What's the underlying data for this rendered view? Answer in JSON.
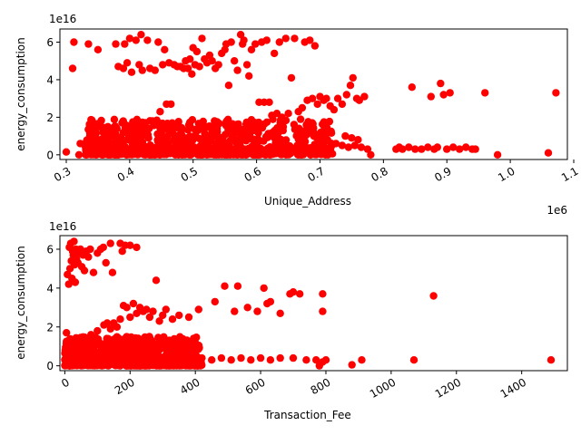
{
  "figure": {
    "background": "#ffffff",
    "marker_color": "#ff0000"
  },
  "chart_data": [
    {
      "type": "scatter",
      "xlabel": "Unique_Address",
      "ylabel": "energy_consumption",
      "x_offset_text": "1e6",
      "y_offset_text": "1e16",
      "xlim": [
        290000,
        1090000
      ],
      "ylim": [
        -2500000000000000.0,
        6.7e+16
      ],
      "xticks": [
        300000,
        400000,
        500000,
        600000,
        700000,
        800000,
        900000,
        1000000,
        1100000
      ],
      "xtick_labels": [
        "0.3",
        "0.4",
        "0.5",
        "0.6",
        "0.7",
        "0.8",
        "0.9",
        "1.0",
        "1.1"
      ],
      "yticks": [
        0,
        2e+16,
        4e+16,
        6e+16
      ],
      "ytick_labels": [
        "0",
        "2",
        "4",
        "6"
      ],
      "series": [
        {
          "color": "#ff0000",
          "points": [
            [
              300000,
              1500000000000000.0
            ],
            [
              310000,
              4.6e+16
            ],
            [
              312000,
              6e+16
            ],
            [
              320000,
              0
            ],
            [
              322000,
              6000000000000000.0
            ],
            [
              330000,
              6000000000000000.0
            ],
            [
              335000,
              5.9e+16
            ],
            [
              345000,
              6000000000000000.0
            ],
            [
              350000,
              5.6e+16
            ],
            [
              355000,
              1500000000000000.0
            ],
            [
              360000,
              6000000000000000.0
            ],
            [
              365000,
              7000000000000000.0
            ],
            [
              372000,
              1200000000000000.0
            ],
            [
              378000,
              5.9e+16
            ],
            [
              382000,
              4.7e+16
            ],
            [
              388000,
              1.7e+16
            ],
            [
              390000,
              4.6e+16
            ],
            [
              392000,
              5.9e+16
            ],
            [
              396000,
              4.9e+16
            ],
            [
              400000,
              6.2e+16
            ],
            [
              403000,
              4.4e+16
            ],
            [
              405000,
              1.5e+16
            ],
            [
              410000,
              6.1e+16
            ],
            [
              415000,
              4.8e+16
            ],
            [
              418000,
              6.4e+16
            ],
            [
              420000,
              4.5e+16
            ],
            [
              422000,
              1.5e+16
            ],
            [
              425000,
              1.3e+16
            ],
            [
              428000,
              6.1e+16
            ],
            [
              432000,
              4.6e+16
            ],
            [
              436000,
              1.8e+16
            ],
            [
              440000,
              4.5e+16
            ],
            [
              445000,
              6e+16
            ],
            [
              448000,
              2.3e+16
            ],
            [
              452000,
              4.8e+16
            ],
            [
              455000,
              5.6e+16
            ],
            [
              458000,
              2.7e+16
            ],
            [
              462000,
              4.9e+16
            ],
            [
              465000,
              2.7e+16
            ],
            [
              470000,
              4.8e+16
            ],
            [
              475000,
              4.7e+16
            ],
            [
              480000,
              4.7e+16
            ],
            [
              485000,
              4.6e+16
            ],
            [
              488000,
              5e+16
            ],
            [
              492000,
              4.6e+16
            ],
            [
              495000,
              5.1e+16
            ],
            [
              498000,
              4.3e+16
            ],
            [
              500000,
              5.7e+16
            ],
            [
              503000,
              4.8e+16
            ],
            [
              506000,
              5.5e+16
            ],
            [
              510000,
              4.7e+16
            ],
            [
              514000,
              6.2e+16
            ],
            [
              518000,
              5.1e+16
            ],
            [
              522000,
              4.9e+16
            ],
            [
              526000,
              5.3e+16
            ],
            [
              530000,
              5e+16
            ],
            [
              535000,
              4.6e+16
            ],
            [
              540000,
              4.8e+16
            ],
            [
              545000,
              5.4e+16
            ],
            [
              550000,
              5.6e+16
            ],
            [
              552000,
              5.9e+16
            ],
            [
              556000,
              3.7e+16
            ],
            [
              560000,
              6e+16
            ],
            [
              565000,
              5e+16
            ],
            [
              570000,
              4.5e+16
            ],
            [
              575000,
              6.4e+16
            ],
            [
              578000,
              5.9e+16
            ],
            [
              580000,
              6.1e+16
            ],
            [
              585000,
              4.8e+16
            ],
            [
              588000,
              4.2e+16
            ],
            [
              592000,
              5.6e+16
            ],
            [
              598000,
              5.9e+16
            ],
            [
              604000,
              2.8e+16
            ],
            [
              608000,
              6e+16
            ],
            [
              612000,
              2.8e+16
            ],
            [
              616000,
              6.1e+16
            ],
            [
              620000,
              2.8e+16
            ],
            [
              624000,
              2.1e+16
            ],
            [
              628000,
              5.4e+16
            ],
            [
              632000,
              2.2e+16
            ],
            [
              636000,
              6e+16
            ],
            [
              640000,
              2e+16
            ],
            [
              646000,
              6.2e+16
            ],
            [
              650000,
              2.2e+16
            ],
            [
              655000,
              4.1e+16
            ],
            [
              660000,
              6.2e+16
            ],
            [
              666000,
              2.3e+16
            ],
            [
              672000,
              2.5e+16
            ],
            [
              676000,
              6e+16
            ],
            [
              680000,
              2.9e+16
            ],
            [
              684000,
              6.1e+16
            ],
            [
              688000,
              3e+16
            ],
            [
              692000,
              5.8e+16
            ],
            [
              696000,
              2.7e+16
            ],
            [
              700000,
              3.1e+16
            ],
            [
              706000,
              2.9e+16
            ],
            [
              710000,
              3e+16
            ],
            [
              716000,
              2.6e+16
            ],
            [
              722000,
              2.4e+16
            ],
            [
              728000,
              3e+16
            ],
            [
              735000,
              2.7e+16
            ],
            [
              742000,
              3.2e+16
            ],
            [
              748000,
              3.7e+16
            ],
            [
              752000,
              4.1e+16
            ],
            [
              758000,
              3e+16
            ],
            [
              762000,
              2.9e+16
            ],
            [
              770000,
              3.1e+16
            ],
            [
              725000,
              6000000000000000.0
            ],
            [
              735000,
              5000000000000000.0
            ],
            [
              745000,
              4000000000000000.0
            ],
            [
              755000,
              5000000000000000.0
            ],
            [
              765000,
              4000000000000000.0
            ],
            [
              775000,
              3000000000000000.0
            ],
            [
              780000,
              0
            ],
            [
              740000,
              1e+16
            ],
            [
              750000,
              9000000000000000.0
            ],
            [
              760000,
              8000000000000000.0
            ],
            [
              820000,
              3000000000000000.0
            ],
            [
              825000,
              4000000000000000.0
            ],
            [
              830000,
              3000000000000000.0
            ],
            [
              840000,
              4000000000000000.0
            ],
            [
              845000,
              3.6e+16
            ],
            [
              850000,
              3000000000000000.0
            ],
            [
              860000,
              3000000000000000.0
            ],
            [
              870000,
              4000000000000000.0
            ],
            [
              875000,
              3.1e+16
            ],
            [
              880000,
              3000000000000000.0
            ],
            [
              885000,
              4000000000000000.0
            ],
            [
              890000,
              3.8e+16
            ],
            [
              895000,
              3.2e+16
            ],
            [
              900000,
              3000000000000000.0
            ],
            [
              905000,
              3.3e+16
            ],
            [
              910000,
              4000000000000000.0
            ],
            [
              920000,
              3000000000000000.0
            ],
            [
              930000,
              4000000000000000.0
            ],
            [
              940000,
              3000000000000000.0
            ],
            [
              945000,
              3000000000000000.0
            ],
            [
              960000,
              3.3e+16
            ],
            [
              980000,
              0
            ],
            [
              1060000,
              1000000000000000.0
            ],
            [
              1072000,
              3.3e+16
            ]
          ]
        }
      ],
      "cluster": {
        "x_range": [
          330000,
          720000
        ],
        "y_range": [
          0,
          1.9e+16
        ],
        "count": 900
      }
    },
    {
      "type": "scatter",
      "xlabel": "Transaction_Fee",
      "ylabel": "energy_consumption",
      "y_offset_text": "1e16",
      "xlim": [
        -15,
        1540
      ],
      "ylim": [
        -2500000000000000.0,
        6.7e+16
      ],
      "xticks": [
        0,
        200,
        400,
        600,
        800,
        1000,
        1200,
        1400
      ],
      "xtick_labels": [
        "0",
        "200",
        "400",
        "600",
        "800",
        "1000",
        "1200",
        "1400"
      ],
      "yticks": [
        0,
        2e+16,
        4e+16,
        6e+16
      ],
      "ytick_labels": [
        "0",
        "2",
        "4",
        "6"
      ],
      "series": [
        {
          "color": "#ff0000",
          "points": [
            [
              5,
              1.7e+16
            ],
            [
              8,
              4.7e+16
            ],
            [
              12,
              4.2e+16
            ],
            [
              14,
              6.1e+16
            ],
            [
              16,
              5e+16
            ],
            [
              18,
              6.3e+16
            ],
            [
              20,
              5.4e+16
            ],
            [
              22,
              4.5e+16
            ],
            [
              24,
              5.9e+16
            ],
            [
              26,
              5.7e+16
            ],
            [
              28,
              6.4e+16
            ],
            [
              30,
              5.2e+16
            ],
            [
              32,
              4.3e+16
            ],
            [
              34,
              6e+16
            ],
            [
              36,
              5.5e+16
            ],
            [
              40,
              5.3e+16
            ],
            [
              44,
              5.8e+16
            ],
            [
              48,
              6e+16
            ],
            [
              52,
              5.1e+16
            ],
            [
              56,
              5.7e+16
            ],
            [
              60,
              4.9e+16
            ],
            [
              66,
              5.9e+16
            ],
            [
              72,
              5.6e+16
            ],
            [
              78,
              6e+16
            ],
            [
              88,
              4.8e+16
            ],
            [
              100,
              5.8e+16
            ],
            [
              110,
              6e+16
            ],
            [
              118,
              6.1e+16
            ],
            [
              126,
              5.3e+16
            ],
            [
              140,
              6.3e+16
            ],
            [
              146,
              4.8e+16
            ],
            [
              170,
              6.3e+16
            ],
            [
              176,
              5.9e+16
            ],
            [
              185,
              6.2e+16
            ],
            [
              200,
              6.2e+16
            ],
            [
              220,
              6.1e+16
            ],
            [
              80,
              1.6e+16
            ],
            [
              100,
              1.8e+16
            ],
            [
              120,
              2.1e+16
            ],
            [
              130,
              2.2e+16
            ],
            [
              140,
              1.9e+16
            ],
            [
              150,
              2.2e+16
            ],
            [
              160,
              2e+16
            ],
            [
              170,
              2.4e+16
            ],
            [
              180,
              3.1e+16
            ],
            [
              190,
              3e+16
            ],
            [
              200,
              2.5e+16
            ],
            [
              210,
              3.2e+16
            ],
            [
              220,
              2.7e+16
            ],
            [
              230,
              3e+16
            ],
            [
              240,
              2.8e+16
            ],
            [
              250,
              2.9e+16
            ],
            [
              260,
              2.5e+16
            ],
            [
              270,
              2.8e+16
            ],
            [
              280,
              4.4e+16
            ],
            [
              290,
              2.3e+16
            ],
            [
              300,
              2.6e+16
            ],
            [
              310,
              2.9e+16
            ],
            [
              330,
              2.4e+16
            ],
            [
              350,
              2.6e+16
            ],
            [
              380,
              2.5e+16
            ],
            [
              410,
              2.9e+16
            ],
            [
              460,
              3.3e+16
            ],
            [
              490,
              4.1e+16
            ],
            [
              520,
              2.8e+16
            ],
            [
              530,
              4.1e+16
            ],
            [
              560,
              3e+16
            ],
            [
              590,
              2.8e+16
            ],
            [
              610,
              4e+16
            ],
            [
              620,
              3.2e+16
            ],
            [
              630,
              3.3e+16
            ],
            [
              660,
              2.7e+16
            ],
            [
              690,
              3.7e+16
            ],
            [
              700,
              3.8e+16
            ],
            [
              720,
              3.7e+16
            ],
            [
              790,
              3.7e+16
            ],
            [
              790,
              2.8e+16
            ],
            [
              1130,
              3.6e+16
            ],
            [
              420,
              4000000000000000.0
            ],
            [
              450,
              3000000000000000.0
            ],
            [
              480,
              4000000000000000.0
            ],
            [
              510,
              3000000000000000.0
            ],
            [
              540,
              4000000000000000.0
            ],
            [
              570,
              3000000000000000.0
            ],
            [
              600,
              4000000000000000.0
            ],
            [
              630,
              3000000000000000.0
            ],
            [
              660,
              4000000000000000.0
            ],
            [
              700,
              4000000000000000.0
            ],
            [
              740,
              3000000000000000.0
            ],
            [
              770,
              3000000000000000.0
            ],
            [
              790,
              2000000000000000.0
            ],
            [
              780,
              0
            ],
            [
              800,
              3000000000000000.0
            ],
            [
              880,
              500000000000000.0
            ],
            [
              910,
              3000000000000000.0
            ],
            [
              1070,
              3000000000000000.0
            ],
            [
              1490,
              3000000000000000.0
            ]
          ]
        }
      ],
      "cluster": {
        "x_range": [
          0,
          420
        ],
        "y_range": [
          0,
          1.5e+16
        ],
        "count": 700
      }
    }
  ]
}
